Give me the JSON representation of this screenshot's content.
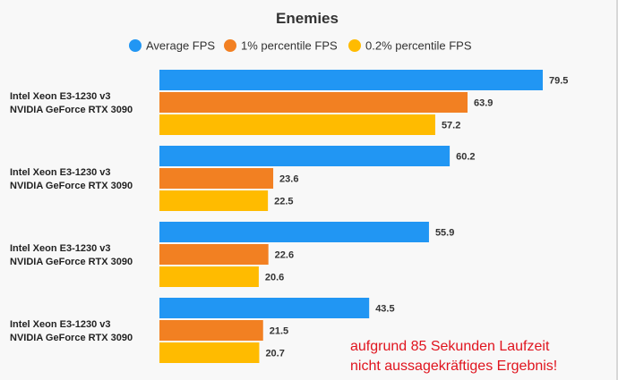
{
  "chart_data": {
    "type": "bar",
    "orientation": "horizontal",
    "title": "Enemies",
    "categories": [
      [
        "Intel Xeon E3-1230 v3",
        "NVIDIA GeForce RTX 3090"
      ],
      [
        "Intel Xeon E3-1230 v3",
        "NVIDIA GeForce RTX 3090"
      ],
      [
        "Intel Xeon E3-1230 v3",
        "NVIDIA GeForce RTX 3090"
      ],
      [
        "Intel Xeon E3-1230 v3",
        "NVIDIA GeForce RTX 3090"
      ]
    ],
    "series": [
      {
        "name": "Average FPS",
        "color": "#2196f3",
        "values": [
          79.5,
          60.2,
          55.9,
          43.5
        ]
      },
      {
        "name": "1% percentile FPS",
        "color": "#f28022",
        "values": [
          63.9,
          23.6,
          22.6,
          21.5
        ]
      },
      {
        "name": "0.2% percentile FPS",
        "color": "#ffbb00",
        "values": [
          57.2,
          22.5,
          20.6,
          20.7
        ]
      }
    ],
    "xlim": [
      0,
      80
    ],
    "legend_position": "top",
    "grid": false,
    "annotation": [
      "aufgrund 85 Sekunden Laufzeit",
      "nicht aussagekräftiges Ergebnis!"
    ]
  }
}
